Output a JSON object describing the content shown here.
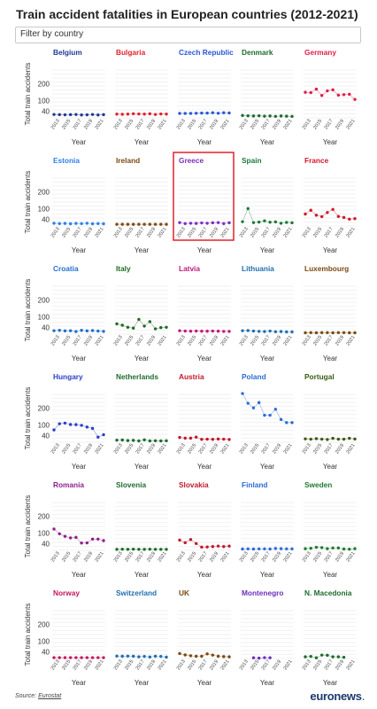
{
  "title": "Train accident fatalities in European countries (2012-2021)",
  "filter": {
    "placeholder": "Filter by country"
  },
  "footer": {
    "source_label": "Source:",
    "source_link": "Eurostat",
    "brand_part1": "euronews",
    "brand_part2": "."
  },
  "chart_data": {
    "type": "line",
    "layout": "small-multiples",
    "ylabel": "Total train accidents",
    "xlabel": "Year",
    "x": [
      2012,
      2013,
      2014,
      2015,
      2016,
      2017,
      2018,
      2019,
      2020,
      2021
    ],
    "x_ticks": [
      "2013",
      "2015",
      "2017",
      "2019",
      "2021"
    ],
    "y_ticks": [
      40,
      100,
      200
    ],
    "ylim": [
      0,
      280
    ],
    "grid": true,
    "highlighted": "Greece",
    "panels": [
      {
        "name": "Belgium",
        "color": "#1f3a93",
        "values": [
          20,
          19,
          18,
          19,
          20,
          17,
          18,
          20,
          17,
          19
        ]
      },
      {
        "name": "Bulgaria",
        "color": "#e0222d",
        "values": [
          22,
          21,
          22,
          24,
          23,
          22,
          24,
          20,
          23,
          22
        ]
      },
      {
        "name": "Czech Republic",
        "color": "#2a57d6",
        "values": [
          26,
          26,
          26,
          27,
          28,
          28,
          30,
          27,
          30,
          29
        ]
      },
      {
        "name": "Denmark",
        "color": "#1e6b2e",
        "values": [
          14,
          12,
          11,
          12,
          10,
          11,
          9,
          11,
          10,
          9
        ]
      },
      {
        "name": "Germany",
        "color": "#e11d48",
        "values": [
          150,
          148,
          168,
          131,
          158,
          164,
          133,
          136,
          138,
          108
        ]
      },
      {
        "name": "Estonia",
        "color": "#2f80ed",
        "values": [
          16,
          14,
          15,
          13,
          15,
          14,
          16,
          13,
          14,
          13
        ]
      },
      {
        "name": "Ireland",
        "color": "#7a4a12",
        "values": [
          10,
          10,
          10,
          10,
          10,
          10,
          10,
          10,
          10,
          10
        ]
      },
      {
        "name": "Greece",
        "color": "#7b2fbe",
        "values": [
          20,
          14,
          16,
          15,
          18,
          16,
          19,
          20,
          14,
          19
        ]
      },
      {
        "name": "Spain",
        "color": "#1e7a3c",
        "values": [
          25,
          102,
          20,
          23,
          30,
          22,
          24,
          16,
          21,
          19
        ]
      },
      {
        "name": "France",
        "color": "#d0192d",
        "values": [
          70,
          92,
          63,
          55,
          79,
          97,
          56,
          50,
          40,
          43
        ]
      },
      {
        "name": "Croatia",
        "color": "#1f6fd1",
        "values": [
          20,
          22,
          19,
          20,
          15,
          22,
          19,
          21,
          18,
          16
        ]
      },
      {
        "name": "Italy",
        "color": "#1d6b22",
        "values": [
          60,
          52,
          40,
          35,
          86,
          47,
          73,
          31,
          38,
          40
        ]
      },
      {
        "name": "Latvia",
        "color": "#c2187a",
        "values": [
          20,
          18,
          17,
          18,
          17,
          17,
          18,
          17,
          16,
          16
        ]
      },
      {
        "name": "Lithuania",
        "color": "#1f6fb1",
        "values": [
          20,
          21,
          18,
          16,
          15,
          18,
          14,
          15,
          13,
          13
        ]
      },
      {
        "name": "Luxembourg",
        "color": "#7a4a12",
        "values": [
          8,
          9,
          8,
          9,
          9,
          8,
          9,
          9,
          8,
          8
        ]
      },
      {
        "name": "Hungary",
        "color": "#2b3fc7",
        "values": [
          72,
          108,
          112,
          104,
          103,
          99,
          89,
          81,
          30,
          44
        ]
      },
      {
        "name": "Netherlands",
        "color": "#1e6b2e",
        "values": [
          12,
          13,
          10,
          11,
          8,
          14,
          8,
          9,
          8,
          9
        ]
      },
      {
        "name": "Austria",
        "color": "#c2182b",
        "values": [
          28,
          24,
          24,
          30,
          17,
          18,
          17,
          19,
          18,
          16
        ]
      },
      {
        "name": "Poland",
        "color": "#2b6bd6",
        "values": [
          285,
          228,
          201,
          232,
          158,
          158,
          193,
          133,
          115,
          115
        ]
      },
      {
        "name": "Portugal",
        "color": "#375a12",
        "values": [
          20,
          18,
          21,
          18,
          16,
          23,
          18,
          18,
          23,
          19
        ]
      },
      {
        "name": "Romania",
        "color": "#8e1f8a",
        "values": [
          125,
          97,
          82,
          73,
          76,
          43,
          44,
          66,
          66,
          57
        ]
      },
      {
        "name": "Slovenia",
        "color": "#1e6b2e",
        "values": [
          6,
          7,
          6,
          7,
          6,
          6,
          7,
          6,
          6,
          6
        ]
      },
      {
        "name": "Slovakia",
        "color": "#c2182b",
        "values": [
          60,
          45,
          63,
          40,
          19,
          20,
          22,
          25,
          22,
          25
        ]
      },
      {
        "name": "Finland",
        "color": "#2b6bd6",
        "values": [
          8,
          9,
          8,
          9,
          9,
          8,
          11,
          10,
          9,
          9
        ]
      },
      {
        "name": "Sweden",
        "color": "#1e7a2e",
        "values": [
          10,
          12,
          18,
          16,
          10,
          14,
          14,
          8,
          7,
          10
        ]
      },
      {
        "name": "Norway",
        "color": "#c2185b",
        "values": [
          5,
          5,
          5,
          5,
          5,
          5,
          5,
          5,
          5,
          5
        ]
      },
      {
        "name": "Switzerland",
        "color": "#1f6fb1",
        "values": [
          14,
          13,
          14,
          13,
          10,
          12,
          9,
          13,
          12,
          8
        ]
      },
      {
        "name": "UK",
        "color": "#7a4a12",
        "values": [
          29,
          21,
          16,
          13,
          13,
          27,
          20,
          13,
          11,
          10
        ]
      },
      {
        "name": "Montenegro",
        "color": "#6a2fbe",
        "values": [
          null,
          null,
          4,
          2,
          5,
          4,
          null,
          null,
          null,
          null
        ]
      },
      {
        "name": "N. Macedonia",
        "color": "#1e6b2e",
        "values": [
          10,
          12,
          4,
          20,
          19,
          10,
          10,
          7,
          null,
          null
        ]
      }
    ]
  }
}
